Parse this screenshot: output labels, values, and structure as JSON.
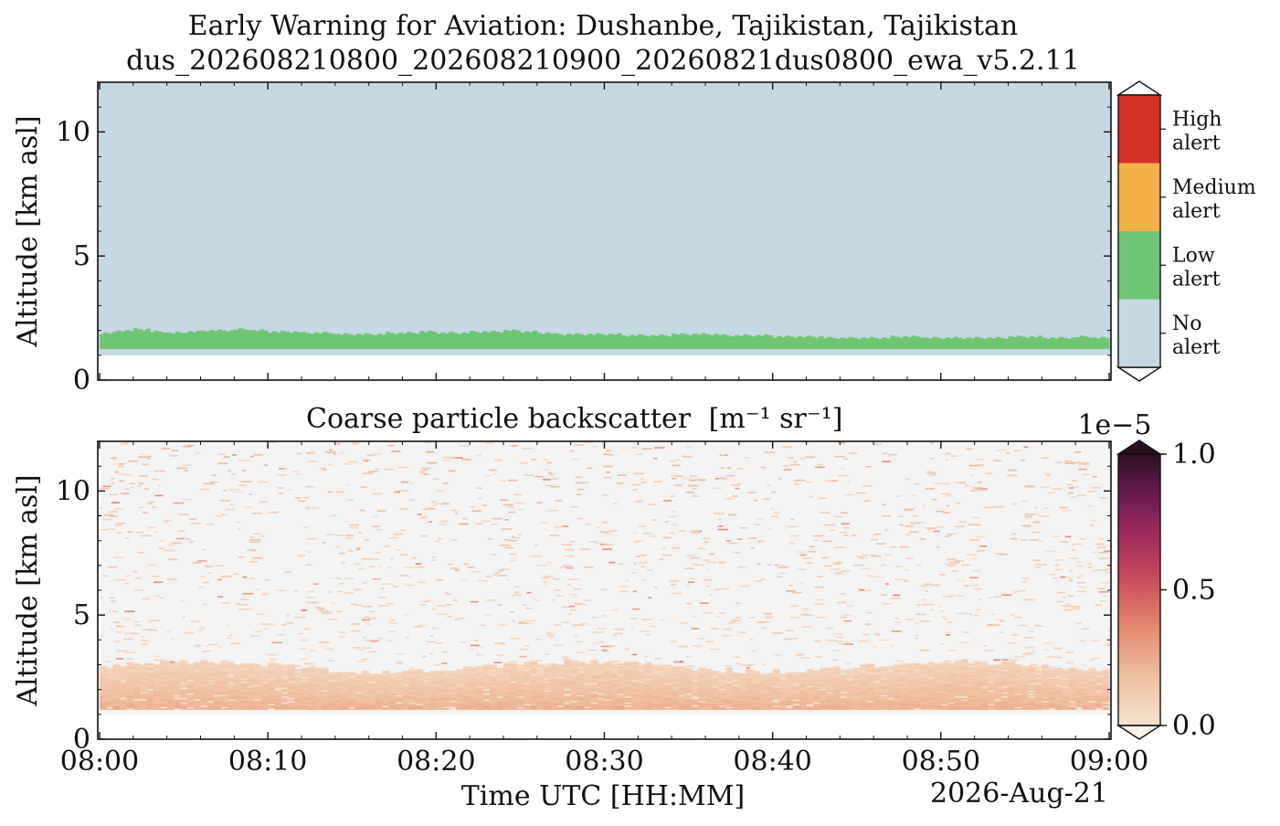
{
  "figure": {
    "title_line1": "Early Warning for Aviation: Dushanbe, Tajikistan, Tajikistan",
    "title_line2": "dus_202608210800_202608210900_20260821dus0800_ewa_v5.2.11",
    "xlabel": "Time UTC [HH:MM]",
    "date_label": "2026-Aug-21"
  },
  "chart_data": [
    {
      "type": "heatmap",
      "panel": "alert",
      "ylabel": "Altitude [km asl]",
      "ylim": [
        0,
        12
      ],
      "yticks": [
        0,
        5,
        10
      ],
      "xlim_minutes": [
        0,
        60
      ],
      "xticks": [
        "08:00",
        "08:10",
        "08:20",
        "08:30",
        "08:40",
        "08:50",
        "09:00"
      ],
      "grid": false,
      "ground_km": 1.0,
      "no_alert_from_km": 1.0,
      "low_alert_layer": {
        "bottom_km": 1.25,
        "top_km_by_minute": [
          [
            0,
            1.9
          ],
          [
            1,
            2.0
          ],
          [
            2,
            2.05
          ],
          [
            3,
            1.95
          ],
          [
            4,
            1.9
          ],
          [
            5,
            1.95
          ],
          [
            6,
            2.0
          ],
          [
            7,
            2.0
          ],
          [
            8,
            2.05
          ],
          [
            9,
            2.0
          ],
          [
            10,
            1.95
          ],
          [
            11,
            1.95
          ],
          [
            12,
            1.9
          ],
          [
            13,
            1.9
          ],
          [
            14,
            1.85
          ],
          [
            15,
            1.85
          ],
          [
            16,
            1.85
          ],
          [
            17,
            1.9
          ],
          [
            18,
            1.9
          ],
          [
            19,
            1.95
          ],
          [
            20,
            1.9
          ],
          [
            21,
            1.9
          ],
          [
            22,
            1.95
          ],
          [
            23,
            1.95
          ],
          [
            24,
            2.0
          ],
          [
            25,
            1.95
          ],
          [
            26,
            1.9
          ],
          [
            27,
            1.85
          ],
          [
            28,
            1.85
          ],
          [
            29,
            1.85
          ],
          [
            30,
            1.85
          ],
          [
            31,
            1.8
          ],
          [
            32,
            1.8
          ],
          [
            33,
            1.8
          ],
          [
            34,
            1.85
          ],
          [
            35,
            1.85
          ],
          [
            36,
            1.85
          ],
          [
            37,
            1.8
          ],
          [
            38,
            1.8
          ],
          [
            39,
            1.8
          ],
          [
            40,
            1.75
          ],
          [
            41,
            1.75
          ],
          [
            42,
            1.75
          ],
          [
            43,
            1.7
          ],
          [
            44,
            1.7
          ],
          [
            45,
            1.7
          ],
          [
            46,
            1.7
          ],
          [
            47,
            1.75
          ],
          [
            48,
            1.75
          ],
          [
            49,
            1.7
          ],
          [
            50,
            1.7
          ],
          [
            51,
            1.7
          ],
          [
            52,
            1.7
          ],
          [
            53,
            1.7
          ],
          [
            54,
            1.75
          ],
          [
            55,
            1.75
          ],
          [
            56,
            1.7
          ],
          [
            57,
            1.7
          ],
          [
            58,
            1.75
          ],
          [
            59,
            1.7
          ]
        ]
      },
      "legend": {
        "placement": "right",
        "entries": [
          {
            "label_line1": "High",
            "label_line2": "alert",
            "color": "#d73027"
          },
          {
            "label_line1": "Medium",
            "label_line2": "alert",
            "color": "#f6b04a"
          },
          {
            "label_line1": "Low",
            "label_line2": "alert",
            "color": "#70c574"
          },
          {
            "label_line1": "No",
            "label_line2": "alert",
            "color": "#c5d8e4"
          }
        ]
      }
    },
    {
      "type": "heatmap",
      "panel": "backscatter",
      "title": "Coarse particle backscatter",
      "title_units": "[m⁻¹ sr⁻¹]",
      "ylabel": "Altitude [km asl]",
      "ylim": [
        0,
        12
      ],
      "yticks": [
        0,
        5,
        10
      ],
      "xlim_minutes": [
        0,
        60
      ],
      "xticks": [
        "08:00",
        "08:10",
        "08:20",
        "08:30",
        "08:40",
        "08:50",
        "09:00"
      ],
      "grid": false,
      "colorbar": {
        "placement": "right",
        "min": 0.0,
        "max": 1.0,
        "scale_label": "1e−5",
        "ticks": [
          "0.0",
          "0.5",
          "1.0"
        ],
        "colors": [
          "#f6e3d0",
          "#efbfa0",
          "#e4896e",
          "#c9495a",
          "#99285f",
          "#5c1a4a",
          "#2a0f22"
        ]
      },
      "profile": {
        "ground_km": 1.0,
        "dense_layer_km": [
          1.2,
          2.9
        ],
        "dense_layer_value": 0.18,
        "sparse_noise_to_km": 12.0
      }
    }
  ]
}
